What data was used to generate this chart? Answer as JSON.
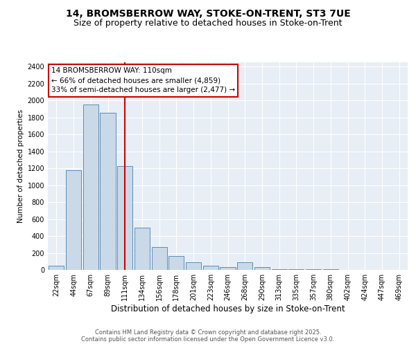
{
  "title1": "14, BROMSBERROW WAY, STOKE-ON-TRENT, ST3 7UE",
  "title2": "Size of property relative to detached houses in Stoke-on-Trent",
  "xlabel": "Distribution of detached houses by size in Stoke-on-Trent",
  "ylabel": "Number of detached properties",
  "categories": [
    "22sqm",
    "44sqm",
    "67sqm",
    "89sqm",
    "111sqm",
    "134sqm",
    "156sqm",
    "178sqm",
    "201sqm",
    "223sqm",
    "246sqm",
    "268sqm",
    "290sqm",
    "313sqm",
    "335sqm",
    "357sqm",
    "380sqm",
    "402sqm",
    "424sqm",
    "447sqm",
    "469sqm"
  ],
  "values": [
    50,
    1175,
    1950,
    1850,
    1225,
    500,
    270,
    160,
    90,
    50,
    30,
    90,
    30,
    10,
    10,
    5,
    5,
    2,
    2,
    1,
    1
  ],
  "bar_color": "#c9d9e8",
  "bar_edge_color": "#5b8db8",
  "vline_index": 4,
  "vline_color": "#cc0000",
  "annotation_line1": "14 BROMSBERROW WAY: 110sqm",
  "annotation_line2": "← 66% of detached houses are smaller (4,859)",
  "annotation_line3": "33% of semi-detached houses are larger (2,477) →",
  "annotation_box_color": "#cc0000",
  "ylim": [
    0,
    2450
  ],
  "yticks": [
    0,
    200,
    400,
    600,
    800,
    1000,
    1200,
    1400,
    1600,
    1800,
    2000,
    2200,
    2400
  ],
  "plot_bg_color": "#e8eef5",
  "grid_color": "#ffffff",
  "footer_text": "Contains HM Land Registry data © Crown copyright and database right 2025.\nContains public sector information licensed under the Open Government Licence v3.0.",
  "title_fontsize": 10,
  "subtitle_fontsize": 9,
  "xlabel_fontsize": 8.5,
  "ylabel_fontsize": 7.5,
  "tick_fontsize": 7,
  "annotation_fontsize": 7.5,
  "footer_fontsize": 6
}
